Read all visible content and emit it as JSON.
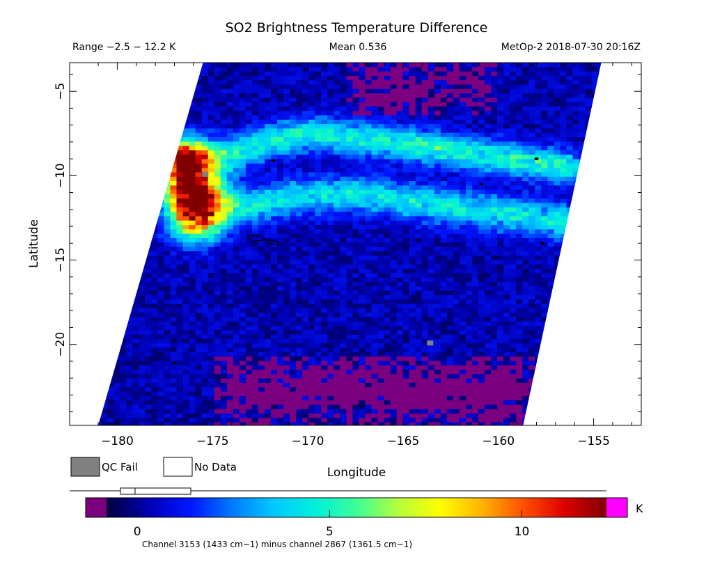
{
  "header": {
    "title": "SO2 Brightness Temperature Difference",
    "range_text": "Range −2.5 − 12.2 K",
    "mean_text": "Mean 0.536",
    "sat_text": "MetOp-2 2018-07-30 20:16Z"
  },
  "legend": {
    "qc_fail_label": "QC Fail",
    "no_data_label": "No Data",
    "qc_fail_color": "#808080",
    "no_data_color": "#ffffff"
  },
  "colorbar": {
    "unit": "K",
    "under_color": "#7b0080",
    "over_color": "#ff00ff",
    "range": [
      -0.8,
      12.2
    ],
    "ticks": [
      0,
      5,
      10
    ],
    "tick_labels": [
      "0",
      "5",
      "10"
    ],
    "stops": [
      "#00003c",
      "#0000b4",
      "#0014ff",
      "#0078ff",
      "#00c8ff",
      "#00f0dc",
      "#3cff96",
      "#b4ff3c",
      "#ffff00",
      "#ffb400",
      "#ff5000",
      "#dc0000",
      "#800000"
    ],
    "caption": "Channel 3153 (1433 cm−1) minus channel 2867 (1361.5 cm−1)"
  },
  "chart_data": {
    "type": "heatmap",
    "title": "SO2 Brightness Temperature Difference",
    "xlabel": "Longitude",
    "ylabel": "Latitude",
    "xlim": [
      -182.5,
      -152.5
    ],
    "ylim": [
      -24.8,
      -3.3
    ],
    "xticks": [
      -180,
      -175,
      -170,
      -165,
      -160,
      -155
    ],
    "xtick_labels": [
      "−180",
      "−175",
      "−170",
      "−165",
      "−160",
      "−155"
    ],
    "yticks": [
      -5,
      -10,
      -15,
      -20
    ],
    "ytick_labels": [
      "−5",
      "−10",
      "−15",
      "−20"
    ],
    "value_unit": "K",
    "value_range": [
      -2.5,
      12.2
    ],
    "mean": 0.536,
    "background_value": 0.3,
    "swath_corners_lonlat": [
      [
        -175.5,
        -3.3
      ],
      [
        -154.6,
        -3.3
      ],
      [
        -158.7,
        -24.8
      ],
      [
        -181.0,
        -24.8
      ]
    ],
    "plume_centerlines": [
      {
        "name": "northern band",
        "points": [
          [
            -176.0,
            -9.3
          ],
          [
            -174.0,
            -8.8
          ],
          [
            -171.8,
            -7.8
          ],
          [
            -169.5,
            -7.5
          ],
          [
            -165.0,
            -8.1
          ],
          [
            -160.0,
            -8.9
          ],
          [
            -156.5,
            -9.5
          ]
        ],
        "width_deg": 0.7,
        "peak_value": 4.5
      },
      {
        "name": "southern band",
        "points": [
          [
            -176.5,
            -11.2
          ],
          [
            -173.0,
            -11.8
          ],
          [
            -170.5,
            -11.2
          ],
          [
            -167.0,
            -11.1
          ],
          [
            -163.0,
            -11.8
          ],
          [
            -158.0,
            -12.5
          ],
          [
            -156.5,
            -12.8
          ]
        ],
        "width_deg": 0.75,
        "peak_value": 4.0
      },
      {
        "name": "western hotspot",
        "points": [
          [
            -176.5,
            -9.2
          ],
          [
            -176.0,
            -10.8
          ],
          [
            -175.8,
            -12.4
          ]
        ],
        "width_deg": 1.0,
        "peak_value": 10.5
      }
    ],
    "below_range_regions_lonlat": [
      {
        "name": "northern low region",
        "lon": [
          -168,
          -160
        ],
        "lat": [
          -6.3,
          -3.3
        ]
      },
      {
        "name": "southern low region",
        "lon": [
          -175,
          -158
        ],
        "lat": [
          -24.8,
          -20.6
        ]
      }
    ],
    "qc_fail_pixels_lonlat": [
      [
        -175.4,
        -9.9
      ],
      [
        -163.6,
        -19.9
      ]
    ],
    "coastlines_lonlat": [
      [
        [
          -173.2,
          -13.6
        ],
        [
          -172.6,
          -13.5
        ],
        [
          -172.2,
          -13.8
        ],
        [
          -172.9,
          -13.9
        ],
        [
          -173.2,
          -13.6
        ]
      ],
      [
        [
          -172.2,
          -13.8
        ],
        [
          -171.6,
          -13.9
        ],
        [
          -171.5,
          -14.1
        ],
        [
          -172.0,
          -14.0
        ],
        [
          -172.2,
          -13.8
        ]
      ]
    ],
    "island_dots_lonlat": [
      [
        -171.8,
        -9.1
      ],
      [
        -169.8,
        -19.0
      ],
      [
        -177.0,
        -21.1
      ],
      [
        -158.0,
        -9.0
      ],
      [
        -160.9,
        -10.5
      ],
      [
        -157.7,
        -14.0
      ]
    ]
  }
}
